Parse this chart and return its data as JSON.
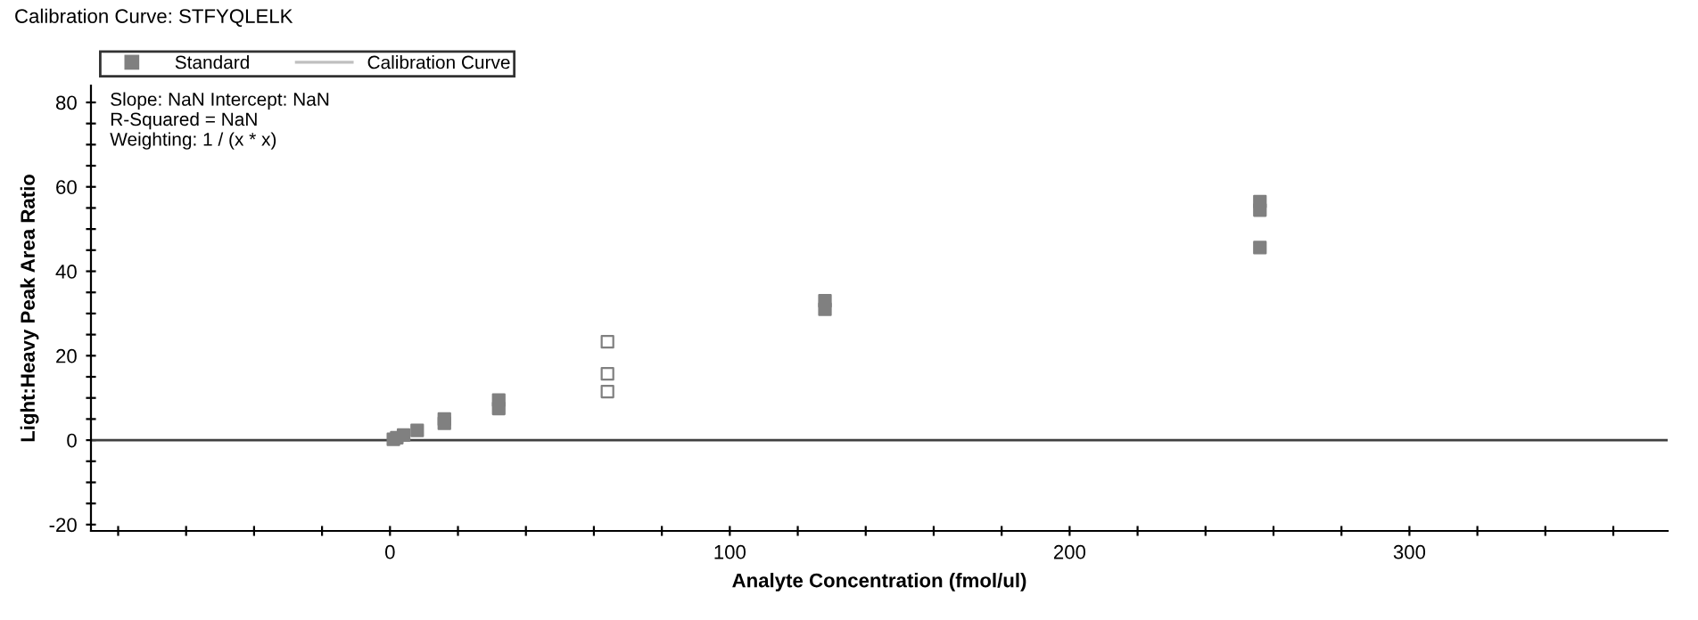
{
  "chart_data": {
    "type": "scatter",
    "title": "Calibration Curve: STFYQLELK",
    "xlabel": "Analyte Concentration (fmol/ul)",
    "ylabel": "Light:Heavy Peak Area Ratio",
    "annotations": [
      "Slope: NaN Intercept: NaN",
      "R-Squared = NaN",
      "Weighting: 1 / (x * x)"
    ],
    "series": [
      {
        "name": "Standard",
        "marker": "square",
        "color": "#808080",
        "x": [
          1,
          2,
          4,
          8,
          16,
          16,
          32,
          32,
          128,
          128,
          256,
          256,
          256
        ],
        "values": [
          0.2,
          0.6,
          1.2,
          2.3,
          4,
          5,
          7.5,
          9.5,
          31,
          33,
          54.5,
          56.5,
          45.6
        ]
      },
      {
        "marker": "square",
        "color": "#ffffff",
        "x": [
          64,
          64,
          64
        ],
        "values": [
          11.5,
          15.7,
          23.3
        ]
      },
      {
        "name": "Calibration Curve",
        "type": "line",
        "color": "#c0c0c0"
      }
    ],
    "xlim": [
      -88,
      376
    ],
    "ylim": [
      -21.5,
      84
    ],
    "xticks": [
      {
        "value": -80,
        "label": null
      },
      {
        "value": -60,
        "label": null
      },
      {
        "value": -40,
        "label": null
      },
      {
        "value": -20,
        "label": null
      },
      0,
      {
        "value": 20,
        "label": null
      },
      {
        "value": 40,
        "label": null
      },
      {
        "value": 60,
        "label": null
      },
      {
        "value": 80,
        "label": null
      },
      100,
      {
        "value": 120,
        "label": null
      },
      {
        "value": 140,
        "label": null
      },
      {
        "value": 160,
        "label": null
      },
      {
        "value": 180,
        "label": null
      },
      200,
      {
        "value": 220,
        "label": null
      },
      {
        "value": 240,
        "label": null
      },
      {
        "value": 260,
        "label": null
      },
      {
        "value": 280,
        "label": null
      },
      300,
      {
        "value": 320,
        "label": null
      },
      {
        "value": 340,
        "label": null
      },
      {
        "value": 360,
        "label": null
      }
    ],
    "yticks": [
      -20,
      {
        "value": -15,
        "label": null
      },
      {
        "value": -10,
        "label": null
      },
      {
        "value": -5,
        "label": null
      },
      0,
      {
        "value": 5,
        "label": null
      },
      {
        "value": 10,
        "label": null
      },
      {
        "value": 15,
        "label": null
      },
      20,
      {
        "value": 25,
        "label": null
      },
      {
        "value": 30,
        "label": null
      },
      {
        "value": 35,
        "label": null
      },
      40,
      {
        "value": 45,
        "label": null
      },
      {
        "value": 50,
        "label": null
      },
      {
        "value": 55,
        "label": null
      },
      60,
      {
        "value": 65,
        "label": null
      },
      {
        "value": 70,
        "label": null
      },
      {
        "value": 75,
        "label": null
      },
      80
    ],
    "ref_lines": [
      {
        "axis": "y",
        "value": 0,
        "color": "#404040"
      }
    ],
    "grid": false,
    "legend": "top left"
  }
}
